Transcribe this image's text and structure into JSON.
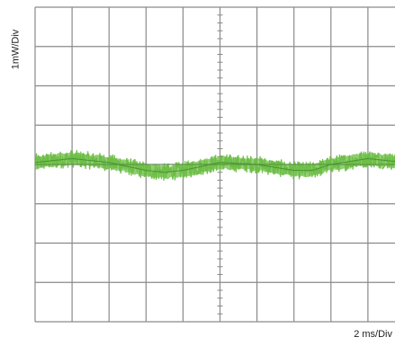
{
  "chart_data": {
    "type": "line",
    "title": "",
    "ylabel": "1mW/Div",
    "xlabel": "2 ms/Div",
    "x_divisions": 10,
    "y_divisions": 8,
    "series": [
      {
        "x_div": [
          0,
          1,
          2,
          3,
          3.5,
          4,
          5,
          6,
          7,
          7.5,
          8,
          9,
          10
        ],
        "y_div": [
          0.05,
          0.15,
          0.05,
          -0.15,
          -0.2,
          -0.15,
          0.05,
          0.0,
          -0.15,
          -0.15,
          0.0,
          0.15,
          0.05
        ],
        "noise_band_div": 0.4
      }
    ],
    "grid": true,
    "colors": {
      "grid": "#8a8a8a",
      "trace": "#6cbd45",
      "trace_center": "#3f8f2c"
    }
  }
}
